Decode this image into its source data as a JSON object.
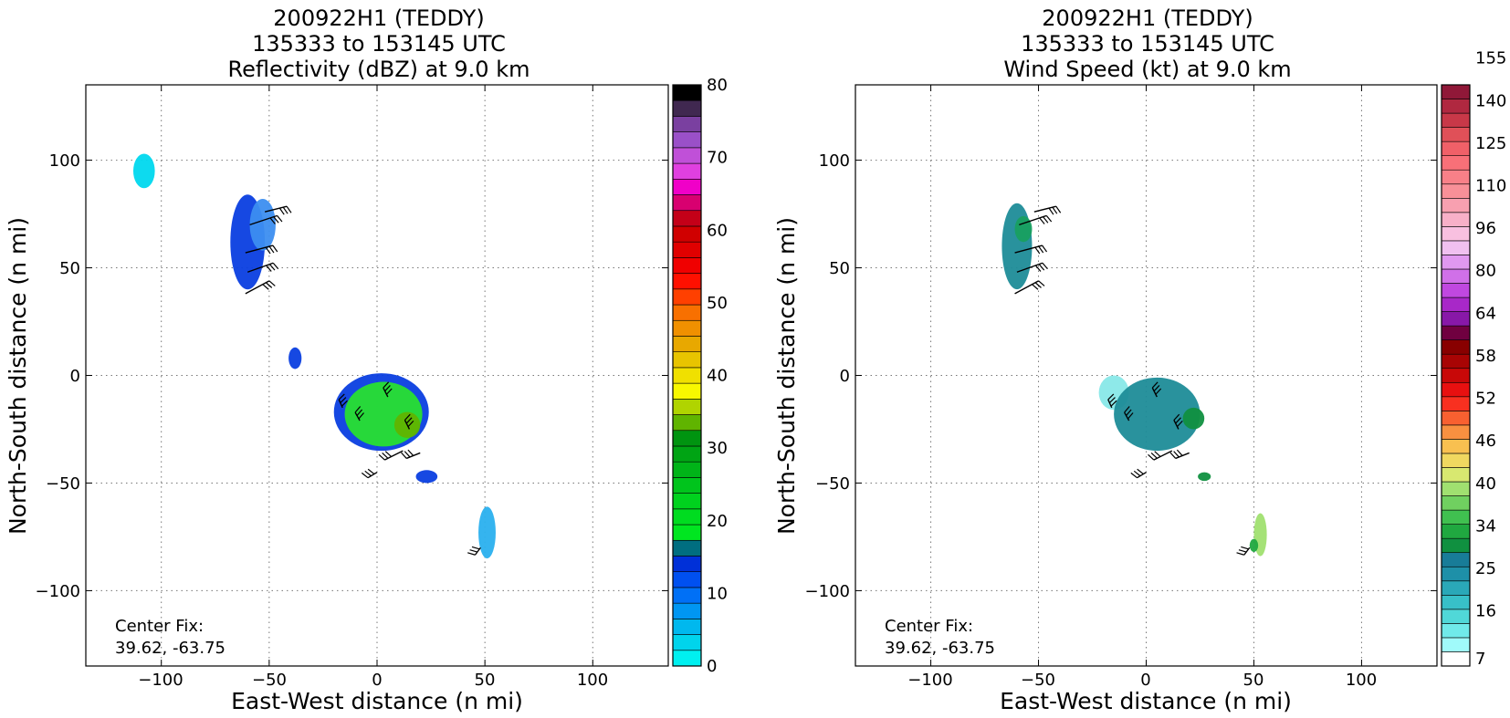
{
  "chart_data": [
    {
      "type": "heatmap",
      "title": [
        "200922H1 (TEDDY)",
        "135333 to 153145 UTC",
        "Reflectivity (dBZ) at 9.0 km"
      ],
      "xlabel": "East-West distance (n mi)",
      "ylabel": "North-South distance (n mi)",
      "xlim": [
        -135,
        135
      ],
      "ylim": [
        -135,
        135
      ],
      "xticks": [
        "−100",
        "−50",
        "0",
        "50",
        "100"
      ],
      "yticks": [
        "100",
        "50",
        "0",
        "−50",
        "−100"
      ],
      "grid": true,
      "center_fix_label": "Center Fix:",
      "center_fix_value": "39.62, -63.75",
      "colorbar": {
        "min": 0,
        "max": 80,
        "ticks": [
          "0",
          "10",
          "20",
          "30",
          "40",
          "50",
          "60",
          "70",
          "80"
        ],
        "colors": [
          "#00f0f0",
          "#00d4ec",
          "#00b8ee",
          "#0096f2",
          "#0070f6",
          "#0050f0",
          "#0030d8",
          "#006e80",
          "#00e620",
          "#00dc20",
          "#00d21e",
          "#00c41c",
          "#00b418",
          "#00a414",
          "#009410",
          "#60b400",
          "#b0d400",
          "#f8f800",
          "#f0e000",
          "#e8c400",
          "#e8a800",
          "#f09000",
          "#f87000",
          "#ff4000",
          "#ff1000",
          "#f00000",
          "#e00000",
          "#d00000",
          "#c40018",
          "#d80070",
          "#f000c8",
          "#e040e0",
          "#c050d8",
          "#9a50c8",
          "#7a40a0",
          "#402850",
          "#000000"
        ]
      },
      "regions": [
        {
          "cx": -108,
          "cy": 95,
          "rx": 5,
          "ry": 8,
          "color": "#00d8ee"
        },
        {
          "cx": -60,
          "cy": 62,
          "rx": 8,
          "ry": 22,
          "color": "#0a3ee0"
        },
        {
          "cx": -53,
          "cy": 70,
          "rx": 6,
          "ry": 12,
          "color": "#3c8ef0"
        },
        {
          "cx": -38,
          "cy": 8,
          "rx": 3,
          "ry": 5,
          "color": "#0a3ee0"
        },
        {
          "cx": 2,
          "cy": -17,
          "rx": 22,
          "ry": 18,
          "color": "#0a3ee0"
        },
        {
          "cx": 3,
          "cy": -18,
          "rx": 18,
          "ry": 15,
          "color": "#28e030"
        },
        {
          "cx": 14,
          "cy": -23,
          "rx": 6,
          "ry": 6,
          "color": "#60b400"
        },
        {
          "cx": 23,
          "cy": -47,
          "rx": 5,
          "ry": 3,
          "color": "#0a3ee0"
        },
        {
          "cx": 51,
          "cy": -73,
          "rx": 4,
          "ry": 12,
          "color": "#2ab0ee"
        }
      ]
    },
    {
      "type": "heatmap",
      "title": [
        "200922H1 (TEDDY)",
        "135333 to 153145 UTC",
        "Wind Speed (kt) at 9.0 km"
      ],
      "xlabel": "East-West distance (n mi)",
      "ylabel": "North-South distance (n mi)",
      "xlim": [
        -135,
        135
      ],
      "ylim": [
        -135,
        135
      ],
      "xticks": [
        "−100",
        "−50",
        "0",
        "50",
        "100"
      ],
      "yticks": [
        "100",
        "50",
        "0",
        "−50",
        "−100"
      ],
      "grid": true,
      "center_fix_label": "Center Fix:",
      "center_fix_value": "39.62, -63.75",
      "colorbar": {
        "min": 7,
        "max": 160,
        "ticks": [
          "7",
          "16",
          "25",
          "34",
          "40",
          "46",
          "52",
          "58",
          "64",
          "80",
          "96",
          "110",
          "125",
          "140",
          "155"
        ],
        "colors": [
          "#ffffff",
          "#a0fafa",
          "#70eaea",
          "#50d8d8",
          "#38c0c8",
          "#2aa8b8",
          "#1e90a8",
          "#187c98",
          "#109040",
          "#20a840",
          "#40c050",
          "#70d060",
          "#a0e070",
          "#d8e870",
          "#f0d860",
          "#f8c050",
          "#f89040",
          "#f86030",
          "#f83020",
          "#e81010",
          "#c80808",
          "#a80404",
          "#880000",
          "#700040",
          "#8818a8",
          "#a828c8",
          "#c048e0",
          "#d070e8",
          "#e098f0",
          "#f0c0f0",
          "#f8c0e0",
          "#f8b0c8",
          "#f8a0b0",
          "#f89098",
          "#f88088",
          "#f87078",
          "#f06068",
          "#e05058",
          "#c83848",
          "#b02840",
          "#901838"
        ]
      },
      "regions": [
        {
          "cx": -60,
          "cy": 60,
          "rx": 7,
          "ry": 20,
          "color": "#1e8c98"
        },
        {
          "cx": -57,
          "cy": 68,
          "rx": 4,
          "ry": 6,
          "color": "#18a060"
        },
        {
          "cx": -15,
          "cy": -8,
          "rx": 7,
          "ry": 8,
          "color": "#88e8e8"
        },
        {
          "cx": 5,
          "cy": -18,
          "rx": 20,
          "ry": 17,
          "color": "#1e8c98"
        },
        {
          "cx": 22,
          "cy": -20,
          "rx": 5,
          "ry": 5,
          "color": "#109040"
        },
        {
          "cx": 27,
          "cy": -47,
          "rx": 3,
          "ry": 2,
          "color": "#109040"
        },
        {
          "cx": 53,
          "cy": -74,
          "rx": 3,
          "ry": 10,
          "color": "#a0e070"
        },
        {
          "cx": 50,
          "cy": -79,
          "rx": 2,
          "ry": 3,
          "color": "#20a840"
        }
      ]
    }
  ],
  "wind_barbs": [
    {
      "x": -59,
      "y": 70,
      "dx": 30,
      "dy": 10
    },
    {
      "x": -61,
      "y": 57,
      "dx": 30,
      "dy": 8
    },
    {
      "x": -60,
      "y": 48,
      "dx": 28,
      "dy": 10
    },
    {
      "x": -61,
      "y": 38,
      "dx": 26,
      "dy": 14
    },
    {
      "x": -52,
      "y": 76,
      "dx": 24,
      "dy": 6
    },
    {
      "x": -16,
      "y": -15,
      "dx": -4,
      "dy": 9
    },
    {
      "x": -8,
      "y": -21,
      "dx": -5,
      "dy": 9
    },
    {
      "x": 5,
      "y": -10,
      "dx": -5,
      "dy": 10
    },
    {
      "x": 15,
      "y": -25,
      "dx": -5,
      "dy": 10
    },
    {
      "x": 12,
      "y": -35,
      "dx": -20,
      "dy": -10
    },
    {
      "x": 0,
      "y": -45,
      "dx": -10,
      "dy": -6
    },
    {
      "x": 20,
      "y": -36,
      "dx": -15,
      "dy": -6
    },
    {
      "x": 48,
      "y": -80,
      "dx": -6,
      "dy": -8
    }
  ]
}
